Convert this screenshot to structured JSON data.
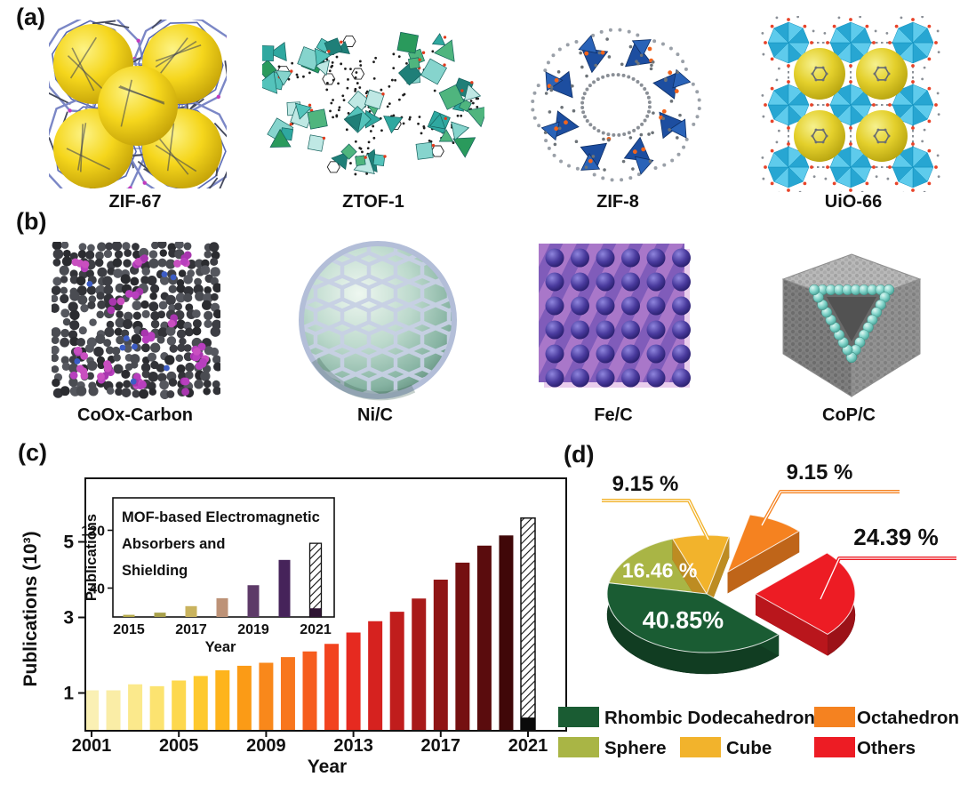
{
  "panels": {
    "a": {
      "letter": "(a)",
      "items": [
        {
          "label": "ZIF-67"
        },
        {
          "label": "ZTOF-1"
        },
        {
          "label": "ZIF-8"
        },
        {
          "label": "UiO-66"
        }
      ]
    },
    "b": {
      "letter": "(b)",
      "items": [
        {
          "label": "CoOx-Carbon"
        },
        {
          "label": "Ni/C"
        },
        {
          "label": "Fe/C"
        },
        {
          "label": "CoP/C"
        }
      ]
    },
    "c": {
      "letter": "(c)"
    },
    "d": {
      "letter": "(d)"
    }
  },
  "chart_data": [
    {
      "id": "publications-by-year",
      "type": "bar",
      "xlabel": "Year",
      "ylabel": "Publications (10³)",
      "x": [
        2001,
        2002,
        2003,
        2004,
        2005,
        2006,
        2007,
        2008,
        2009,
        2010,
        2011,
        2012,
        2013,
        2014,
        2015,
        2016,
        2017,
        2018,
        2019,
        2020,
        2021
      ],
      "values": [
        1.07,
        1.07,
        1.23,
        1.18,
        1.33,
        1.45,
        1.6,
        1.72,
        1.8,
        1.95,
        2.1,
        2.3,
        2.6,
        2.9,
        3.15,
        3.5,
        4.0,
        4.45,
        4.9,
        5.17,
        5.63
      ],
      "bar_colors": [
        "#faf0b4",
        "#faeda6",
        "#fbe98c",
        "#fce370",
        "#fdd84e",
        "#fec92e",
        "#feb41c",
        "#fb9b16",
        "#f9881b",
        "#f8761d",
        "#f65d1e",
        "#f2431f",
        "#e62a20",
        "#d6221f",
        "#c01d1c",
        "#a81a19",
        "#8f1515",
        "#751011",
        "#5a0c0d",
        "#400708",
        "hatch"
      ],
      "yticks": [
        1,
        3,
        5
      ],
      "xticks": [
        2001,
        2005,
        2009,
        2013,
        2017,
        2021
      ],
      "ylim": [
        0,
        6.3
      ],
      "grid": false,
      "last_bar_hatched": true,
      "last_bar_solid_value": 0.35,
      "last_bar_solid_color": "#0a0a0a"
    },
    {
      "id": "mof-em-absorbers-inset",
      "type": "bar",
      "title": "MOF-based Electromagnetic Absorbers and Shielding",
      "title_lines": [
        "MOF-based Electromagnetic",
        "Absorbers and",
        "Shielding"
      ],
      "xlabel": "Year",
      "ylabel": "Publications",
      "x": [
        2015,
        2016,
        2017,
        2018,
        2019,
        2020,
        2021
      ],
      "values": [
        3,
        6,
        15,
        26,
        44,
        79,
        102
      ],
      "bar_colors": [
        "#b5a94a",
        "#a8a04b",
        "#c9b35e",
        "#bd9277",
        "#5d3a68",
        "#46235a",
        "hatch"
      ],
      "yticks": [
        40,
        120
      ],
      "xticks": [
        2015,
        2017,
        2019,
        2021
      ],
      "ylim": [
        0,
        165
      ],
      "grid": false,
      "last_bar_hatched": true,
      "last_bar_solid_value": 12,
      "last_bar_solid_color": "#2e1433"
    },
    {
      "id": "morphology-share-pie",
      "type": "pie",
      "start_angle_deg": 110,
      "slices": [
        {
          "label": "Cube",
          "value": 9.15,
          "display": "9.15 %",
          "color": "#f2b32c",
          "exploded": false,
          "label_pos": "outside"
        },
        {
          "label": "Octahedron",
          "value": 9.15,
          "display": "9.15 %",
          "color": "#f58220",
          "exploded": true,
          "label_pos": "outside"
        },
        {
          "label": "Others",
          "value": 24.39,
          "display": "24.39 %",
          "color": "#ed1c24",
          "exploded": true,
          "label_pos": "outside"
        },
        {
          "label": "Rhombic Dodecahedron",
          "value": 40.85,
          "display": "40.85%",
          "color": "#1a5c33",
          "exploded": false,
          "label_pos": "inside"
        },
        {
          "label": "Sphere",
          "value": 16.46,
          "display": "16.46 %",
          "color": "#a9b545",
          "exploded": false,
          "label_pos": "inside"
        }
      ],
      "legend": [
        {
          "label": "Rhombic Dodecahedron",
          "color": "#1a5c33"
        },
        {
          "label": "Octahedron",
          "color": "#f58220"
        },
        {
          "label": "Sphere",
          "color": "#a9b545"
        },
        {
          "label": "Cube",
          "color": "#f2b32c"
        },
        {
          "label": "Others",
          "color": "#ed1c24"
        }
      ],
      "legend_position": "bottom"
    }
  ]
}
